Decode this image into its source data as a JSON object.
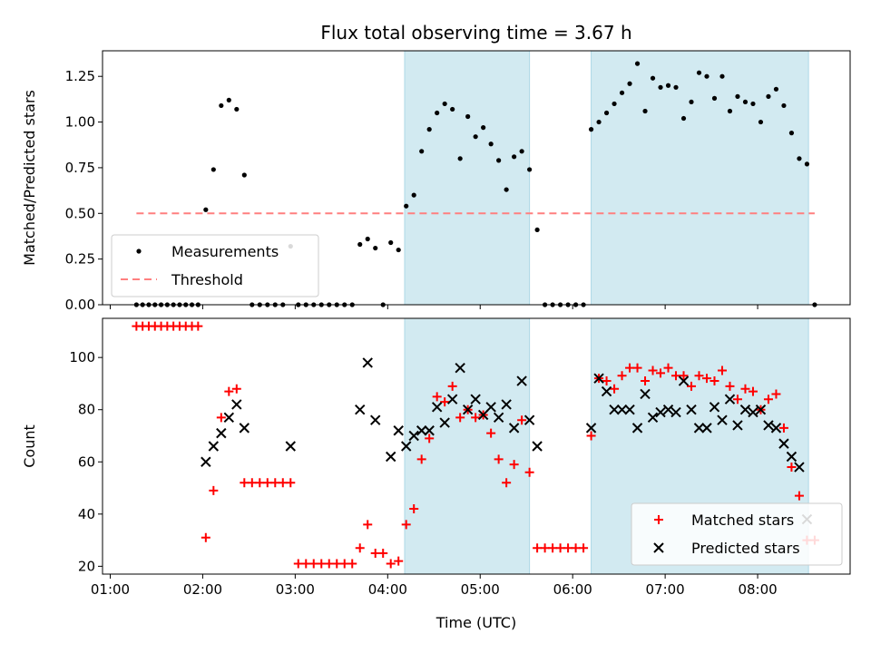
{
  "chart_data": {
    "type": "scatter",
    "title": "Flux total observing time = 3.67 h",
    "xlabel": "Time (UTC)",
    "xlim": [
      "00:55",
      "09:00"
    ],
    "x_ticks": [
      "01:00",
      "02:00",
      "03:00",
      "04:00",
      "05:00",
      "06:00",
      "07:00",
      "08:00"
    ],
    "shaded_intervals": [
      [
        "04:11",
        "05:32"
      ],
      [
        "06:12",
        "08:33"
      ]
    ],
    "shade_color": "#add8e6",
    "panels": [
      {
        "id": "ratio",
        "ylabel": "Matched/Predicted stars",
        "ylim": [
          0,
          1.39
        ],
        "y_ticks": [
          "0.00",
          "0.25",
          "0.50",
          "0.75",
          "1.00",
          "1.25"
        ],
        "y_tick_values": [
          0,
          0.25,
          0.5,
          0.75,
          1.0,
          1.25
        ],
        "legend_position": "lower-left",
        "series": [
          {
            "name": "Measurements",
            "marker": "dot",
            "color": "#000000",
            "x": [
              "01:17",
              "01:21",
              "01:25",
              "01:29",
              "01:33",
              "01:37",
              "01:41",
              "01:45",
              "01:49",
              "01:53",
              "01:57",
              "02:02",
              "02:07",
              "02:12",
              "02:17",
              "02:22",
              "02:27",
              "02:32",
              "02:37",
              "02:42",
              "02:47",
              "02:52",
              "02:57",
              "03:02",
              "03:07",
              "03:12",
              "03:17",
              "03:22",
              "03:27",
              "03:32",
              "03:37",
              "03:42",
              "03:47",
              "03:52",
              "03:57",
              "04:02",
              "04:07",
              "04:12",
              "04:17",
              "04:22",
              "04:27",
              "04:32",
              "04:37",
              "04:42",
              "04:47",
              "04:52",
              "04:57",
              "05:02",
              "05:07",
              "05:12",
              "05:17",
              "05:22",
              "05:27",
              "05:32",
              "05:37",
              "05:42",
              "05:47",
              "05:52",
              "05:57",
              "06:02",
              "06:07",
              "06:12",
              "06:17",
              "06:22",
              "06:27",
              "06:32",
              "06:37",
              "06:42",
              "06:47",
              "06:52",
              "06:57",
              "07:02",
              "07:07",
              "07:12",
              "07:17",
              "07:22",
              "07:27",
              "07:32",
              "07:37",
              "07:42",
              "07:47",
              "07:52",
              "07:57",
              "08:02",
              "08:07",
              "08:12",
              "08:17",
              "08:22",
              "08:27",
              "08:32",
              "08:37"
            ],
            "y": [
              0,
              0,
              0,
              0,
              0,
              0,
              0,
              0,
              0,
              0,
              0,
              0.52,
              0.74,
              1.09,
              1.12,
              1.07,
              0.71,
              0,
              0,
              0,
              0,
              0,
              0.32,
              0,
              0,
              0,
              0,
              0,
              0,
              0,
              0,
              0.33,
              0.36,
              0.31,
              0,
              0.34,
              0.3,
              0.54,
              0.6,
              0.84,
              0.96,
              1.05,
              1.1,
              1.07,
              0.8,
              1.03,
              0.92,
              0.97,
              0.88,
              0.79,
              0.63,
              0.81,
              0.84,
              0.74,
              0.41,
              0,
              0,
              0,
              0,
              0,
              0,
              0.96,
              1.0,
              1.05,
              1.1,
              1.16,
              1.21,
              1.32,
              1.06,
              1.24,
              1.19,
              1.2,
              1.19,
              1.02,
              1.11,
              1.27,
              1.25,
              1.13,
              1.25,
              1.06,
              1.14,
              1.11,
              1.1,
              1.0,
              1.14,
              1.18,
              1.09,
              0.94,
              0.8,
              0.77,
              0
            ]
          },
          {
            "name": "Threshold",
            "marker": "dashed-line",
            "color": "#ff7f7f",
            "x": [
              "01:17",
              "08:37"
            ],
            "y": [
              0.5,
              0.5
            ]
          }
        ]
      },
      {
        "id": "count",
        "ylabel": "Count",
        "ylim": [
          17,
          115
        ],
        "y_ticks": [
          "20",
          "40",
          "60",
          "80",
          "100"
        ],
        "y_tick_values": [
          20,
          40,
          60,
          80,
          100
        ],
        "legend_position": "lower-right",
        "series": [
          {
            "name": "Matched stars",
            "marker": "plus",
            "color": "#ff0000",
            "x": [
              "01:17",
              "01:21",
              "01:25",
              "01:29",
              "01:33",
              "01:37",
              "01:41",
              "01:45",
              "01:49",
              "01:53",
              "01:57",
              "02:02",
              "02:07",
              "02:12",
              "02:17",
              "02:22",
              "02:27",
              "02:32",
              "02:37",
              "02:42",
              "02:47",
              "02:52",
              "02:57",
              "03:02",
              "03:07",
              "03:12",
              "03:17",
              "03:22",
              "03:27",
              "03:32",
              "03:37",
              "03:42",
              "03:47",
              "03:52",
              "03:57",
              "04:02",
              "04:07",
              "04:12",
              "04:17",
              "04:22",
              "04:27",
              "04:32",
              "04:37",
              "04:42",
              "04:47",
              "04:52",
              "04:57",
              "05:02",
              "05:07",
              "05:12",
              "05:17",
              "05:22",
              "05:27",
              "05:32",
              "05:37",
              "05:42",
              "05:47",
              "05:52",
              "05:57",
              "06:02",
              "06:07",
              "06:12",
              "06:17",
              "06:22",
              "06:27",
              "06:32",
              "06:37",
              "06:42",
              "06:47",
              "06:52",
              "06:57",
              "07:02",
              "07:07",
              "07:12",
              "07:17",
              "07:22",
              "07:27",
              "07:32",
              "07:37",
              "07:42",
              "07:47",
              "07:52",
              "07:57",
              "08:02",
              "08:07",
              "08:12",
              "08:17",
              "08:22",
              "08:27",
              "08:32",
              "08:37"
            ],
            "y": [
              112,
              112,
              112,
              112,
              112,
              112,
              112,
              112,
              112,
              112,
              112,
              31,
              49,
              77,
              87,
              88,
              52,
              52,
              52,
              52,
              52,
              52,
              52,
              21,
              21,
              21,
              21,
              21,
              21,
              21,
              21,
              27,
              36,
              25,
              25,
              21,
              22,
              36,
              42,
              61,
              69,
              85,
              83,
              89,
              77,
              80,
              77,
              78,
              71,
              61,
              52,
              59,
              76,
              56,
              27,
              27,
              27,
              27,
              27,
              27,
              27,
              70,
              92,
              91,
              88,
              93,
              96,
              96,
              91,
              95,
              94,
              96,
              93,
              93,
              89,
              93,
              92,
              91,
              95,
              89,
              84,
              88,
              87,
              80,
              84,
              86,
              73,
              58,
              47,
              30,
              30
            ]
          },
          {
            "name": "Predicted stars",
            "marker": "x",
            "color": "#000000",
            "x": [
              "02:02",
              "02:07",
              "02:12",
              "02:17",
              "02:22",
              "02:27",
              "02:57",
              "03:42",
              "03:47",
              "03:52",
              "04:02",
              "04:07",
              "04:12",
              "04:17",
              "04:22",
              "04:27",
              "04:32",
              "04:37",
              "04:42",
              "04:47",
              "04:52",
              "04:57",
              "05:02",
              "05:07",
              "05:12",
              "05:17",
              "05:22",
              "05:27",
              "05:32",
              "05:37",
              "06:12",
              "06:17",
              "06:22",
              "06:27",
              "06:32",
              "06:37",
              "06:42",
              "06:47",
              "06:52",
              "06:57",
              "07:02",
              "07:07",
              "07:12",
              "07:17",
              "07:22",
              "07:27",
              "07:32",
              "07:37",
              "07:42",
              "07:47",
              "07:52",
              "07:57",
              "08:02",
              "08:07",
              "08:12",
              "08:17",
              "08:22",
              "08:27",
              "08:32"
            ],
            "y": [
              60,
              66,
              71,
              77,
              82,
              73,
              66,
              80,
              98,
              76,
              62,
              72,
              66,
              70,
              72,
              72,
              81,
              75,
              84,
              96,
              80,
              84,
              78,
              81,
              77,
              82,
              73,
              91,
              76,
              66,
              73,
              92,
              87,
              80,
              80,
              80,
              73,
              86,
              77,
              79,
              80,
              79,
              91,
              80,
              73,
              73,
              81,
              76,
              84,
              74,
              80,
              79,
              80,
              74,
              73,
              67,
              62,
              58,
              38
            ]
          }
        ]
      }
    ]
  }
}
